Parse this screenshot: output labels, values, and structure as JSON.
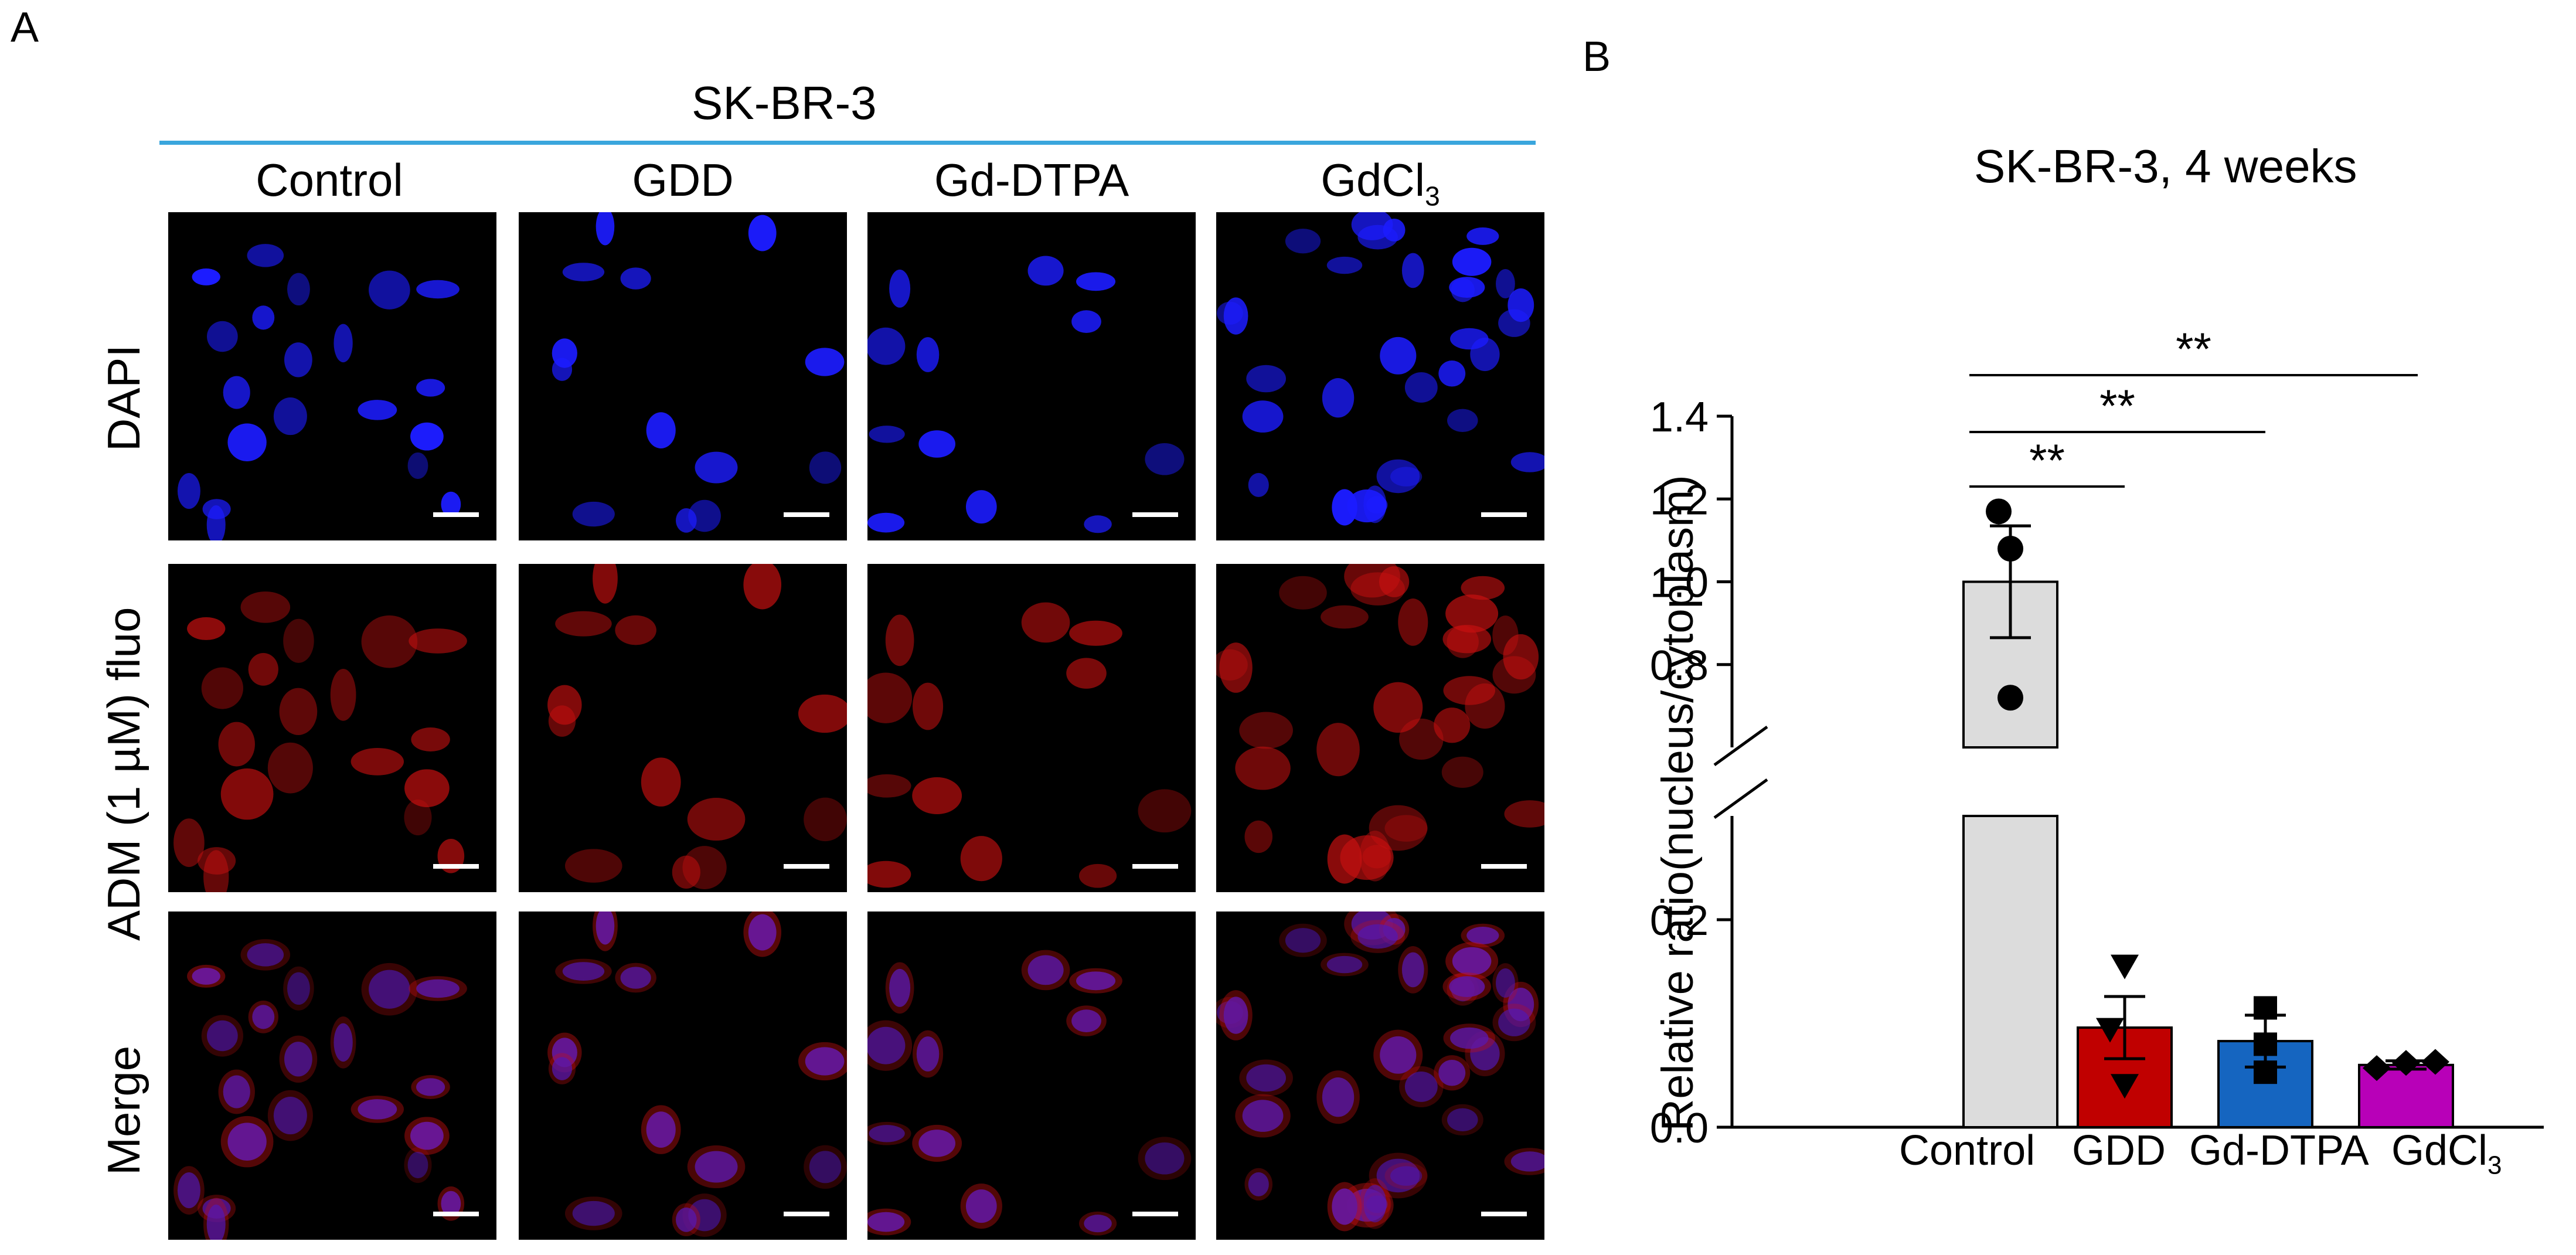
{
  "panel_a": {
    "letter": "A",
    "cell_line": "SK-BR-3",
    "columns": [
      "Control",
      "GDD",
      "Gd-DTPA",
      "GdCl"
    ],
    "gdcl_subscript": "3",
    "rows": [
      "DAPI",
      "ADM (1 µM) fluo",
      "Merge"
    ],
    "colors": {
      "dapi": "#1c1cff",
      "adm": "#c81010",
      "header_line": "#3aa6dd"
    }
  },
  "panel_b": {
    "letter": "B"
  },
  "chart_data": {
    "type": "bar",
    "title": "SK-BR-3, 4 weeks",
    "ylabel": "Relative ratio(nucleus/cytoplasm)",
    "xlabel": "",
    "categories": [
      "Control",
      "GDD",
      "Gd-DTPA",
      "GdCl"
    ],
    "category_subscripts": [
      "",
      "",
      "",
      "3"
    ],
    "values": [
      1.0,
      0.096,
      0.083,
      0.06
    ],
    "errors": [
      0.135,
      0.03,
      0.025,
      0.004
    ],
    "points": [
      [
        1.17,
        0.72,
        1.08
      ],
      [
        0.155,
        0.094,
        0.04
      ],
      [
        0.115,
        0.08,
        0.053
      ],
      [
        0.057,
        0.062,
        0.063
      ]
    ],
    "markers": [
      "circle",
      "triangle-down",
      "square",
      "diamond"
    ],
    "colors": [
      "#dcdcdc",
      "#c00000",
      "#1565c0",
      "#b800b8"
    ],
    "broken_axis": true,
    "axis_segments": [
      [
        0,
        0.3
      ],
      [
        0.6,
        1.4
      ]
    ],
    "yticks": [
      0.0,
      0.2,
      0.8,
      1.0,
      1.2,
      1.4
    ],
    "ytick_labels": [
      "0.0",
      "0.2",
      "0.8",
      "1.0",
      "1.2",
      "1.4"
    ],
    "significance": [
      {
        "from": "Control",
        "to": "GDD",
        "label": "**"
      },
      {
        "from": "Control",
        "to": "Gd-DTPA",
        "label": "**"
      },
      {
        "from": "Control",
        "to": "GdCl",
        "label": "**"
      }
    ],
    "grid": false,
    "legend": "none"
  }
}
